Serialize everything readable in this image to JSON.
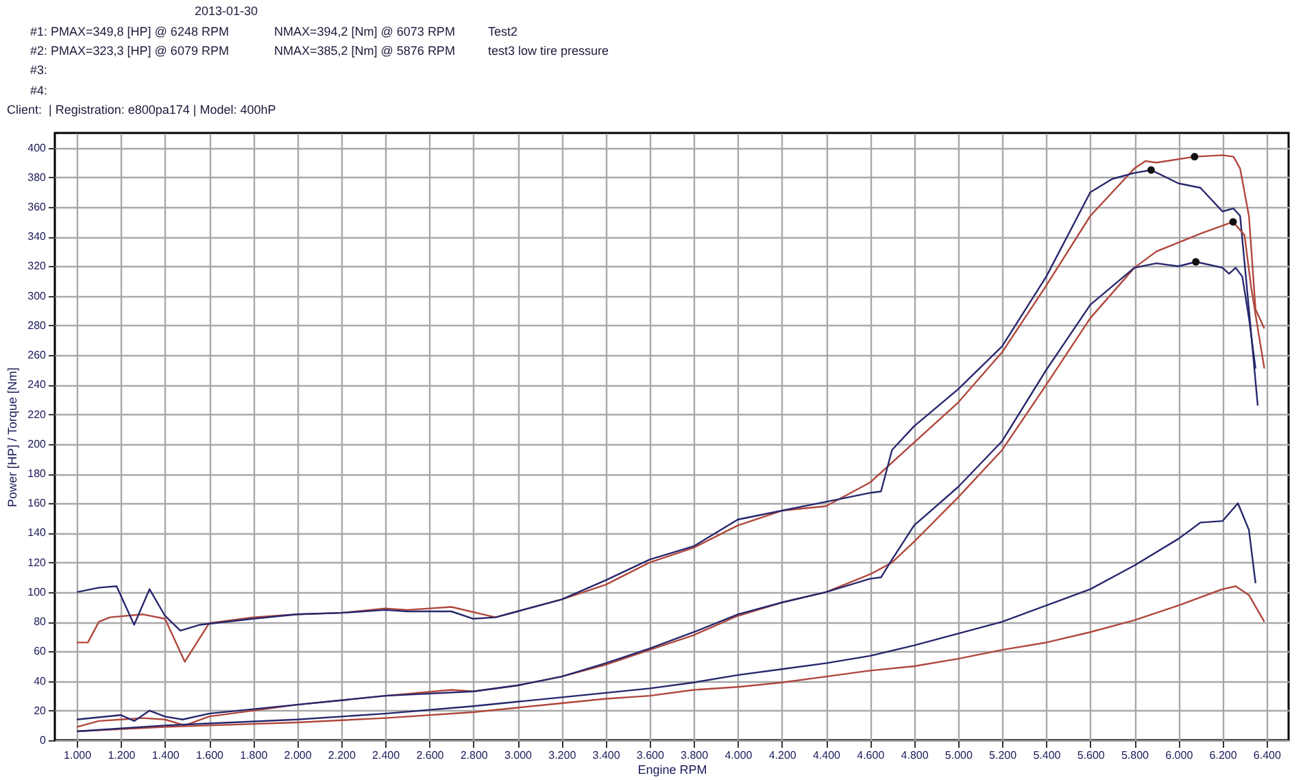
{
  "chart_data": {
    "type": "line",
    "xlabel": "Engine RPM",
    "ylabel": "Power [HP] / Torque [Nm]",
    "annotations": [
      "2013-01-30",
      "#1: PMAX=349,8 [HP] @ 6248 RPM",
      "NMAX=394,2 [Nm] @ 6073 RPM",
      "Test2",
      "#2: PMAX=323,3 [HP] @ 6079 RPM",
      "NMAX=385,2 [Nm] @ 5876 RPM",
      "test3 low tire pressure",
      "#3:",
      "#4:",
      "Client:  | Registration: e800pa174 | Model: 400hP"
    ],
    "xlim": [
      900,
      6500
    ],
    "ylim": [
      0,
      410
    ],
    "xticks": [
      {
        "value": 1000,
        "label": "1.000"
      },
      {
        "value": 1200,
        "label": "1.200"
      },
      {
        "value": 1400,
        "label": "1.400"
      },
      {
        "value": 1600,
        "label": "1.600"
      },
      {
        "value": 1800,
        "label": "1.800"
      },
      {
        "value": 2000,
        "label": "2.000"
      },
      {
        "value": 2200,
        "label": "2.200"
      },
      {
        "value": 2400,
        "label": "2.400"
      },
      {
        "value": 2600,
        "label": "2.600"
      },
      {
        "value": 2800,
        "label": "2.800"
      },
      {
        "value": 3000,
        "label": "3.000"
      },
      {
        "value": 3200,
        "label": "3.200"
      },
      {
        "value": 3400,
        "label": "3.400"
      },
      {
        "value": 3600,
        "label": "3.600"
      },
      {
        "value": 3800,
        "label": "3.800"
      },
      {
        "value": 4000,
        "label": "4.000"
      },
      {
        "value": 4200,
        "label": "4.200"
      },
      {
        "value": 4400,
        "label": "4.400"
      },
      {
        "value": 4600,
        "label": "4.600"
      },
      {
        "value": 4800,
        "label": "4.800"
      },
      {
        "value": 5000,
        "label": "5.000"
      },
      {
        "value": 5200,
        "label": "5.200"
      },
      {
        "value": 5400,
        "label": "5.400"
      },
      {
        "value": 5600,
        "label": "5.600"
      },
      {
        "value": 5800,
        "label": "5.800"
      },
      {
        "value": 6000,
        "label": "6.000"
      },
      {
        "value": 6200,
        "label": "6.200"
      },
      {
        "value": 6400,
        "label": "6.400"
      }
    ],
    "yticks": [
      0,
      20,
      40,
      60,
      80,
      100,
      120,
      140,
      160,
      180,
      200,
      220,
      240,
      260,
      280,
      300,
      320,
      340,
      360,
      380,
      400
    ],
    "grid": true,
    "marker": "none",
    "line_style": "solid",
    "series": [
      {
        "color": "#b0473c",
        "x": [
          1000,
          1050,
          1100,
          1150,
          1300,
          1400,
          1490,
          1600,
          1800,
          2000,
          2200,
          2400,
          2500,
          2700,
          2900,
          3000,
          3200,
          3400,
          3600,
          3800,
          4000,
          4200,
          4400,
          4600,
          4800,
          5000,
          5200,
          5400,
          5600,
          5800,
          5850,
          5900,
          6073,
          6200,
          6250,
          6280,
          6320,
          6350,
          6390
        ],
        "values": [
          66,
          66,
          80,
          83,
          85,
          82,
          53,
          79,
          83,
          85,
          86,
          89,
          88,
          90,
          83,
          87,
          95,
          105,
          120,
          130,
          145,
          155,
          158,
          174,
          201,
          228,
          262,
          307,
          354,
          386,
          391,
          390,
          394,
          395,
          394,
          386,
          354,
          291,
          278
        ]
      },
      {
        "color": "#27276e",
        "x": [
          1000,
          1100,
          1180,
          1260,
          1330,
          1400,
          1470,
          1560,
          1800,
          2000,
          2200,
          2400,
          2500,
          2700,
          2800,
          2900,
          3000,
          3200,
          3400,
          3600,
          3800,
          4000,
          4200,
          4400,
          4600,
          4650,
          4700,
          4800,
          5000,
          5200,
          5400,
          5600,
          5700,
          5800,
          5876,
          6000,
          6100,
          6200,
          6250,
          6280,
          6320,
          6360
        ],
        "values": [
          100,
          103,
          104,
          78,
          102,
          84,
          74,
          78,
          82,
          85,
          86,
          88,
          87,
          87,
          82,
          83,
          87,
          95,
          108,
          122,
          131,
          149,
          155,
          161,
          167,
          168,
          196,
          212,
          237,
          266,
          313,
          370,
          379,
          383,
          385,
          376,
          373,
          357,
          359,
          354,
          291,
          226
        ]
      },
      {
        "color": "#b0473c",
        "x": [
          1000,
          1100,
          1200,
          1300,
          1400,
          1490,
          1600,
          2000,
          2400,
          2700,
          2800,
          3000,
          3200,
          3400,
          3600,
          3800,
          4000,
          4200,
          4400,
          4600,
          4700,
          4800,
          5000,
          5200,
          5400,
          5600,
          5800,
          5900,
          6000,
          6100,
          6248,
          6300,
          6330,
          6370,
          6390
        ],
        "values": [
          9,
          13,
          14,
          15,
          14,
          10,
          16,
          24,
          30,
          34,
          33,
          37,
          43,
          51,
          61,
          71,
          84,
          93,
          100,
          112,
          120,
          134,
          164,
          196,
          240,
          285,
          319,
          330,
          336,
          342,
          350,
          341,
          306,
          269,
          251
        ]
      },
      {
        "color": "#27276e",
        "x": [
          1000,
          1200,
          1260,
          1330,
          1400,
          1480,
          1600,
          2000,
          2400,
          2800,
          3000,
          3200,
          3400,
          3600,
          3800,
          4000,
          4200,
          4400,
          4600,
          4650,
          4700,
          4800,
          5000,
          5200,
          5400,
          5600,
          5800,
          5900,
          6000,
          6079,
          6200,
          6230,
          6260,
          6290,
          6320,
          6350
        ],
        "values": [
          14,
          17,
          13,
          20,
          16,
          14,
          18,
          24,
          30,
          33,
          37,
          43,
          52,
          62,
          73,
          85,
          93,
          100,
          109,
          110,
          122,
          145,
          171,
          202,
          250,
          294,
          319,
          322,
          320,
          323,
          319,
          315,
          319,
          313,
          285,
          251
        ]
      },
      {
        "color": "#b0473c",
        "x": [
          1000,
          1400,
          2000,
          2400,
          2800,
          3000,
          3200,
          3400,
          3600,
          3800,
          4000,
          4200,
          4400,
          4600,
          4800,
          5000,
          5200,
          5400,
          5600,
          5800,
          6000,
          6200,
          6260,
          6320,
          6390
        ],
        "values": [
          6,
          9,
          12,
          15,
          19,
          22,
          25,
          28,
          30,
          34,
          36,
          39,
          43,
          47,
          50,
          55,
          61,
          66,
          73,
          81,
          91,
          102,
          104,
          98,
          80
        ]
      },
      {
        "color": "#27276e",
        "x": [
          1000,
          1400,
          2000,
          2400,
          2800,
          3000,
          3200,
          3400,
          3600,
          3800,
          4000,
          4200,
          4400,
          4600,
          4800,
          5000,
          5200,
          5400,
          5600,
          5800,
          6000,
          6100,
          6200,
          6270,
          6320,
          6350
        ],
        "values": [
          6,
          10,
          14,
          18,
          23,
          26,
          29,
          32,
          35,
          39,
          44,
          48,
          52,
          57,
          64,
          72,
          80,
          91,
          102,
          118,
          136,
          147,
          148,
          160,
          142,
          106
        ]
      },
      {
        "type": "scatter",
        "marker": "circle",
        "color": "#111111",
        "x": [
          6073,
          5876,
          6248,
          6079
        ],
        "values": [
          394,
          385,
          350,
          323
        ]
      }
    ]
  }
}
